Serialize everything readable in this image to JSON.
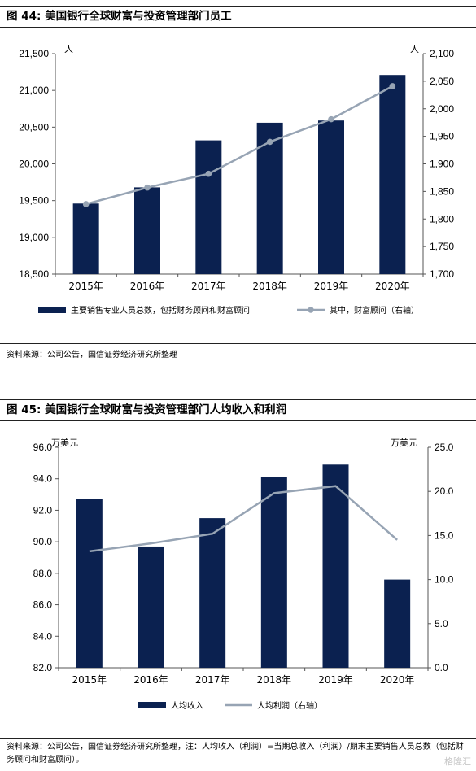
{
  "figures": [
    {
      "title": "图 44: 美国银行全球财富与投资管理部门员工",
      "source": "资料来源：公司公告，国信证券经济研究所整理"
    },
    {
      "title": "图 45: 美国银行全球财富与投资管理部门人均收入和利润",
      "source": "资料来源：公司公告，国信证券经济研究所整理，注：人均收入（利润）=当期总收入（利润）/期末主要销售人员总数（包括财务顾问和财富顾问）。"
    }
  ],
  "watermark": "格隆汇",
  "colors": {
    "bar": "#0b2150",
    "line": "#97a4b4",
    "axis": "#555555"
  },
  "chart_data": [
    {
      "type": "bar",
      "categories": [
        "2015年",
        "2016年",
        "2017年",
        "2018年",
        "2019年",
        "2020年"
      ],
      "left_axis": {
        "unit": "人",
        "ylim": [
          18500,
          21500
        ],
        "ticks": [
          "18,500",
          "19,000",
          "19,500",
          "20,000",
          "20,500",
          "21,000",
          "21,500"
        ]
      },
      "right_axis": {
        "unit": "人",
        "ylim": [
          1700,
          2100
        ],
        "ticks": [
          "1,700",
          "1,750",
          "1,800",
          "1,850",
          "1,900",
          "1,950",
          "2,000",
          "2,050",
          "2,100"
        ]
      },
      "series": [
        {
          "name": "主要销售专业人员总数，包括财务顾问和财富顾问",
          "type": "bar",
          "axis": "left",
          "values": [
            19460,
            19680,
            20320,
            20560,
            20590,
            21210
          ]
        },
        {
          "name": "其中，财富顾问（右轴）",
          "type": "line",
          "axis": "right",
          "values": [
            1827,
            1857,
            1882,
            1940,
            1981,
            2041
          ]
        }
      ],
      "legend_position": "bottom"
    },
    {
      "type": "bar",
      "categories": [
        "2015年",
        "2016年",
        "2017年",
        "2018年",
        "2019年",
        "2020年"
      ],
      "left_axis": {
        "unit": "万美元",
        "ylim": [
          82,
          96
        ],
        "ticks": [
          "82.0",
          "84.0",
          "86.0",
          "88.0",
          "90.0",
          "92.0",
          "94.0",
          "96.0"
        ]
      },
      "right_axis": {
        "unit": "万美元",
        "ylim": [
          0,
          25
        ],
        "ticks": [
          "0.0",
          "5.0",
          "10.0",
          "15.0",
          "20.0",
          "25.0"
        ]
      },
      "series": [
        {
          "name": "人均收入",
          "type": "bar",
          "axis": "left",
          "values": [
            92.7,
            89.7,
            91.5,
            94.1,
            94.9,
            87.6
          ]
        },
        {
          "name": "人均利润（右轴）",
          "type": "line",
          "axis": "right",
          "values": [
            13.2,
            14.1,
            15.2,
            19.8,
            20.6,
            14.5
          ]
        }
      ],
      "legend_position": "bottom"
    }
  ]
}
